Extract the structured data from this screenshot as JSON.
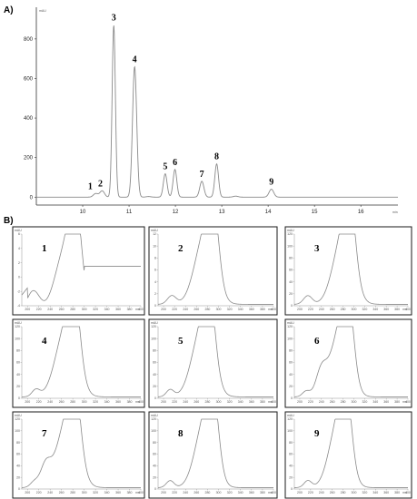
{
  "panel_a_label": "A)",
  "panel_b_label": "B)",
  "chart_data": [
    {
      "type": "line",
      "panel": "A)",
      "ylabel": "mAU",
      "xlabel": "min",
      "xlim": [
        9.0,
        16.8
      ],
      "ylim": [
        -40,
        960
      ],
      "x_ticks": [
        10,
        11,
        12,
        13,
        14,
        15,
        16
      ],
      "y_ticks": [
        0,
        200,
        400,
        600,
        800
      ],
      "grid": false,
      "peaks": [
        {
          "label": "1",
          "rt": 10.28,
          "height": 18,
          "width": 0.05
        },
        {
          "label": "2",
          "rt": 10.42,
          "height": 32,
          "width": 0.05
        },
        {
          "label": "3",
          "rt": 10.67,
          "height": 870,
          "width": 0.035
        },
        {
          "label": "4",
          "rt": 11.12,
          "height": 660,
          "width": 0.045
        },
        {
          "label": "5",
          "rt": 11.78,
          "height": 118,
          "width": 0.04
        },
        {
          "label": "6",
          "rt": 11.99,
          "height": 140,
          "width": 0.04
        },
        {
          "label": "7",
          "rt": 12.57,
          "height": 80,
          "width": 0.045
        },
        {
          "label": "8",
          "rt": 12.89,
          "height": 168,
          "width": 0.04
        },
        {
          "label": "9",
          "rt": 14.07,
          "height": 40,
          "width": 0.05
        }
      ]
    },
    {
      "type": "line",
      "panel": "B)",
      "ylabel": "mAU",
      "xlabel": "nm",
      "xlim": [
        190,
        400
      ],
      "spectra": [
        {
          "label": "1",
          "y_ticks": [
            "6",
            "4",
            "2",
            "0",
            "-2",
            "-4"
          ],
          "peaks": [
            [
              270,
              1.0,
              20
            ],
            [
              285,
              0.95,
              10
            ],
            [
              210,
              0.35,
              12
            ]
          ],
          "baseline": -0.15,
          "plateau": 0.55
        },
        {
          "label": "2",
          "y_ticks": [
            "12",
            "10",
            "8",
            "6",
            "4",
            "2",
            "0"
          ],
          "peaks": [
            [
              275,
              0.95,
              18
            ],
            [
              290,
              0.9,
              10
            ],
            [
              215,
              0.12,
              8
            ]
          ],
          "baseline": 0.02
        },
        {
          "label": "3",
          "y_ticks": [
            "120",
            "100",
            "80",
            "60",
            "40",
            "20",
            "0"
          ],
          "peaks": [
            [
              280,
              0.95,
              18
            ],
            [
              293,
              0.85,
              10
            ],
            [
              215,
              0.12,
              8
            ]
          ],
          "baseline": 0.02
        },
        {
          "label": "4",
          "y_ticks": [
            "120",
            "100",
            "80",
            "60",
            "40",
            "20",
            "0"
          ],
          "peaks": [
            [
              268,
              0.95,
              18
            ],
            [
              283,
              0.88,
              10
            ],
            [
              215,
              0.1,
              7
            ]
          ],
          "baseline": 0.02
        },
        {
          "label": "5",
          "y_ticks": [
            "120",
            "100",
            "80",
            "60",
            "40",
            "20",
            "0"
          ],
          "peaks": [
            [
              270,
              0.95,
              18
            ],
            [
              284,
              0.85,
              10
            ],
            [
              212,
              0.1,
              7
            ]
          ],
          "baseline": 0.02
        },
        {
          "label": "6",
          "y_ticks": [
            "120",
            "100",
            "80",
            "60",
            "40",
            "20",
            "0"
          ],
          "peaks": [
            [
              275,
              0.95,
              17
            ],
            [
              290,
              0.85,
              10
            ],
            [
              240,
              0.35,
              10
            ],
            [
              212,
              0.08,
              7
            ]
          ],
          "baseline": 0.02
        },
        {
          "label": "7",
          "y_ticks": [
            "120",
            "100",
            "80",
            "60",
            "40",
            "20",
            "0"
          ],
          "peaks": [
            [
              270,
              0.95,
              18
            ],
            [
              284,
              0.85,
              10
            ],
            [
              232,
              0.3,
              9
            ],
            [
              212,
              0.08,
              7
            ]
          ],
          "baseline": 0.02
        },
        {
          "label": "8",
          "y_ticks": [
            "120",
            "100",
            "80",
            "60",
            "40",
            "20",
            "0"
          ],
          "peaks": [
            [
              275,
              0.95,
              17
            ],
            [
              290,
              0.88,
              10
            ],
            [
              212,
              0.1,
              7
            ]
          ],
          "baseline": 0.02
        },
        {
          "label": "9",
          "y_ticks": [
            "120",
            "100",
            "80",
            "60",
            "40",
            "20",
            "0"
          ],
          "peaks": [
            [
              272,
              0.95,
              17
            ],
            [
              286,
              0.85,
              10
            ],
            [
              215,
              0.1,
              7
            ]
          ],
          "baseline": 0.02
        }
      ],
      "x_ticks": [
        200,
        220,
        240,
        260,
        280,
        300,
        320,
        340,
        360,
        380,
        400
      ]
    }
  ],
  "colors": {
    "trace": "#8a8a8a",
    "axis": "#333333",
    "frame": "#1a1a1a"
  }
}
